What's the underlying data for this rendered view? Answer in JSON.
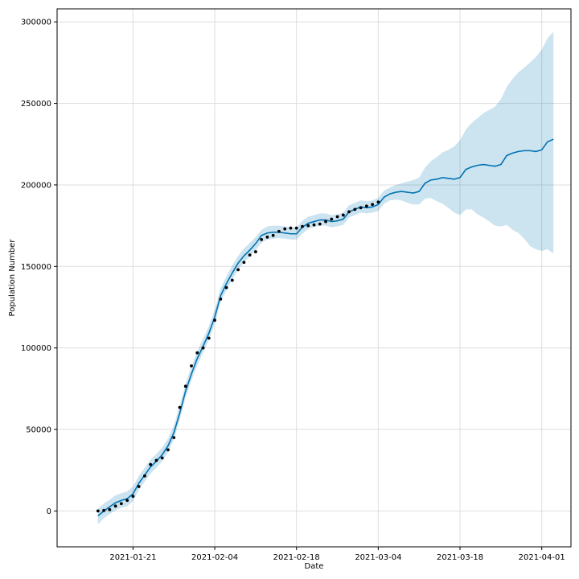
{
  "chart_data": {
    "type": "line",
    "title": "",
    "xlabel": "Date",
    "ylabel": "Population Number",
    "grid": true,
    "legend": "none",
    "xlim": [
      "2021-01-08",
      "2021-04-06"
    ],
    "ylim": [
      -22000,
      308000
    ],
    "x_ticks": [
      "2021-01-21",
      "2021-02-04",
      "2021-02-18",
      "2021-03-04",
      "2021-03-18",
      "2021-04-01"
    ],
    "y_ticks": [
      0,
      50000,
      100000,
      150000,
      200000,
      250000,
      300000
    ],
    "colors": {
      "forecast": "#0072B2",
      "band": "#0072B2",
      "observed": "#000000",
      "grid": "#dddddd"
    },
    "observed": {
      "x": [
        "2021-01-15",
        "2021-01-16",
        "2021-01-17",
        "2021-01-18",
        "2021-01-19",
        "2021-01-20",
        "2021-01-21",
        "2021-01-22",
        "2021-01-23",
        "2021-01-24",
        "2021-01-25",
        "2021-01-26",
        "2021-01-27",
        "2021-01-28",
        "2021-01-29",
        "2021-01-30",
        "2021-01-31",
        "2021-02-01",
        "2021-02-02",
        "2021-02-03",
        "2021-02-04",
        "2021-02-05",
        "2021-02-06",
        "2021-02-07",
        "2021-02-08",
        "2021-02-09",
        "2021-02-10",
        "2021-02-11",
        "2021-02-12",
        "2021-02-13",
        "2021-02-14",
        "2021-02-15",
        "2021-02-16",
        "2021-02-17",
        "2021-02-18",
        "2021-02-19",
        "2021-02-20",
        "2021-02-21",
        "2021-02-22",
        "2021-02-23",
        "2021-02-24",
        "2021-02-25",
        "2021-02-26",
        "2021-02-27",
        "2021-02-28",
        "2021-03-01",
        "2021-03-02",
        "2021-03-03",
        "2021-03-04"
      ],
      "y": [
        0,
        300,
        800,
        3000,
        4500,
        6500,
        9000,
        15000,
        21500,
        28500,
        31000,
        32500,
        37500,
        45000,
        63500,
        76500,
        89000,
        97000,
        100000,
        106000,
        117000,
        130000,
        137000,
        141500,
        148000,
        152500,
        157000,
        159000,
        166500,
        168000,
        169000,
        171500,
        173000,
        173500,
        173500,
        174500,
        175000,
        175500,
        176000,
        177500,
        179000,
        180500,
        181500,
        183500,
        185000,
        186000,
        187000,
        188000,
        189500
      ]
    },
    "forecast": {
      "x": [
        "2021-01-15",
        "2021-01-16",
        "2021-01-17",
        "2021-01-18",
        "2021-01-19",
        "2021-01-20",
        "2021-01-21",
        "2021-01-22",
        "2021-01-23",
        "2021-01-24",
        "2021-01-25",
        "2021-01-26",
        "2021-01-27",
        "2021-01-28",
        "2021-01-29",
        "2021-01-30",
        "2021-01-31",
        "2021-02-01",
        "2021-02-02",
        "2021-02-03",
        "2021-02-04",
        "2021-02-05",
        "2021-02-06",
        "2021-02-07",
        "2021-02-08",
        "2021-02-09",
        "2021-02-10",
        "2021-02-11",
        "2021-02-12",
        "2021-02-13",
        "2021-02-14",
        "2021-02-15",
        "2021-02-16",
        "2021-02-17",
        "2021-02-18",
        "2021-02-19",
        "2021-02-20",
        "2021-02-21",
        "2021-02-22",
        "2021-02-23",
        "2021-02-24",
        "2021-02-25",
        "2021-02-26",
        "2021-02-27",
        "2021-02-28",
        "2021-03-01",
        "2021-03-02",
        "2021-03-03",
        "2021-03-04",
        "2021-03-05",
        "2021-03-06",
        "2021-03-07",
        "2021-03-08",
        "2021-03-09",
        "2021-03-10",
        "2021-03-11",
        "2021-03-12",
        "2021-03-13",
        "2021-03-14",
        "2021-03-15",
        "2021-03-16",
        "2021-03-17",
        "2021-03-18",
        "2021-03-19",
        "2021-03-20",
        "2021-03-21",
        "2021-03-22",
        "2021-03-23",
        "2021-03-24",
        "2021-03-25",
        "2021-03-26",
        "2021-03-27",
        "2021-03-28",
        "2021-03-29",
        "2021-03-30",
        "2021-03-31",
        "2021-04-01",
        "2021-04-02",
        "2021-04-03"
      ],
      "yhat": [
        -3000,
        0,
        2500,
        5000,
        6500,
        7500,
        10500,
        17000,
        22000,
        27000,
        30500,
        34500,
        40000,
        48000,
        60000,
        73500,
        84000,
        93500,
        101000,
        109000,
        119000,
        132000,
        139500,
        146000,
        152000,
        156500,
        160000,
        164000,
        169000,
        170500,
        171000,
        171000,
        170500,
        170000,
        170000,
        174000,
        176500,
        177500,
        178500,
        178500,
        177500,
        178000,
        179000,
        183500,
        185000,
        186500,
        186000,
        186500,
        188000,
        192500,
        194500,
        195500,
        196000,
        195500,
        195000,
        196000,
        201000,
        203000,
        203500,
        204500,
        204000,
        203500,
        204500,
        209500,
        211000,
        212000,
        212500,
        212000,
        211500,
        212500,
        218000,
        219500,
        220500,
        221000,
        221000,
        220500,
        221500,
        226500,
        228000
      ],
      "yhat_lower": [
        -8000,
        -4500,
        -2000,
        500,
        2000,
        3000,
        6000,
        13000,
        18000,
        23000,
        26500,
        30500,
        36000,
        44000,
        56000,
        69500,
        80000,
        89500,
        97000,
        105000,
        115000,
        128000,
        135500,
        142000,
        148000,
        152500,
        156000,
        160000,
        164500,
        166500,
        167000,
        167500,
        167000,
        166500,
        166500,
        170000,
        173000,
        174000,
        175000,
        175000,
        174000,
        174500,
        175500,
        180000,
        181500,
        183000,
        182500,
        183000,
        184000,
        188500,
        190500,
        191000,
        190500,
        189000,
        188000,
        188000,
        191500,
        192000,
        190000,
        188500,
        186000,
        183000,
        181500,
        185000,
        185000,
        182000,
        180000,
        177500,
        175000,
        174500,
        175500,
        172500,
        170500,
        167000,
        162500,
        160500,
        159500,
        160500,
        158000
      ],
      "yhat_upper": [
        1500,
        4500,
        7000,
        9500,
        11000,
        12000,
        15000,
        21500,
        26500,
        31500,
        35000,
        39000,
        44500,
        52500,
        64500,
        78000,
        88500,
        98000,
        105500,
        113500,
        123500,
        136500,
        144000,
        150500,
        156500,
        161000,
        164500,
        168000,
        172500,
        174500,
        175000,
        175000,
        174500,
        174000,
        174000,
        178000,
        180500,
        181500,
        182500,
        182500,
        181500,
        182000,
        183000,
        187500,
        189000,
        190500,
        190000,
        190500,
        192000,
        196500,
        198500,
        200000,
        201000,
        202000,
        203000,
        204500,
        210500,
        214500,
        217000,
        220000,
        221500,
        223500,
        227500,
        234000,
        238000,
        241000,
        244000,
        246000,
        248000,
        252500,
        260000,
        265000,
        269000,
        272000,
        275000,
        278500,
        283000,
        290000,
        294000
      ]
    }
  }
}
